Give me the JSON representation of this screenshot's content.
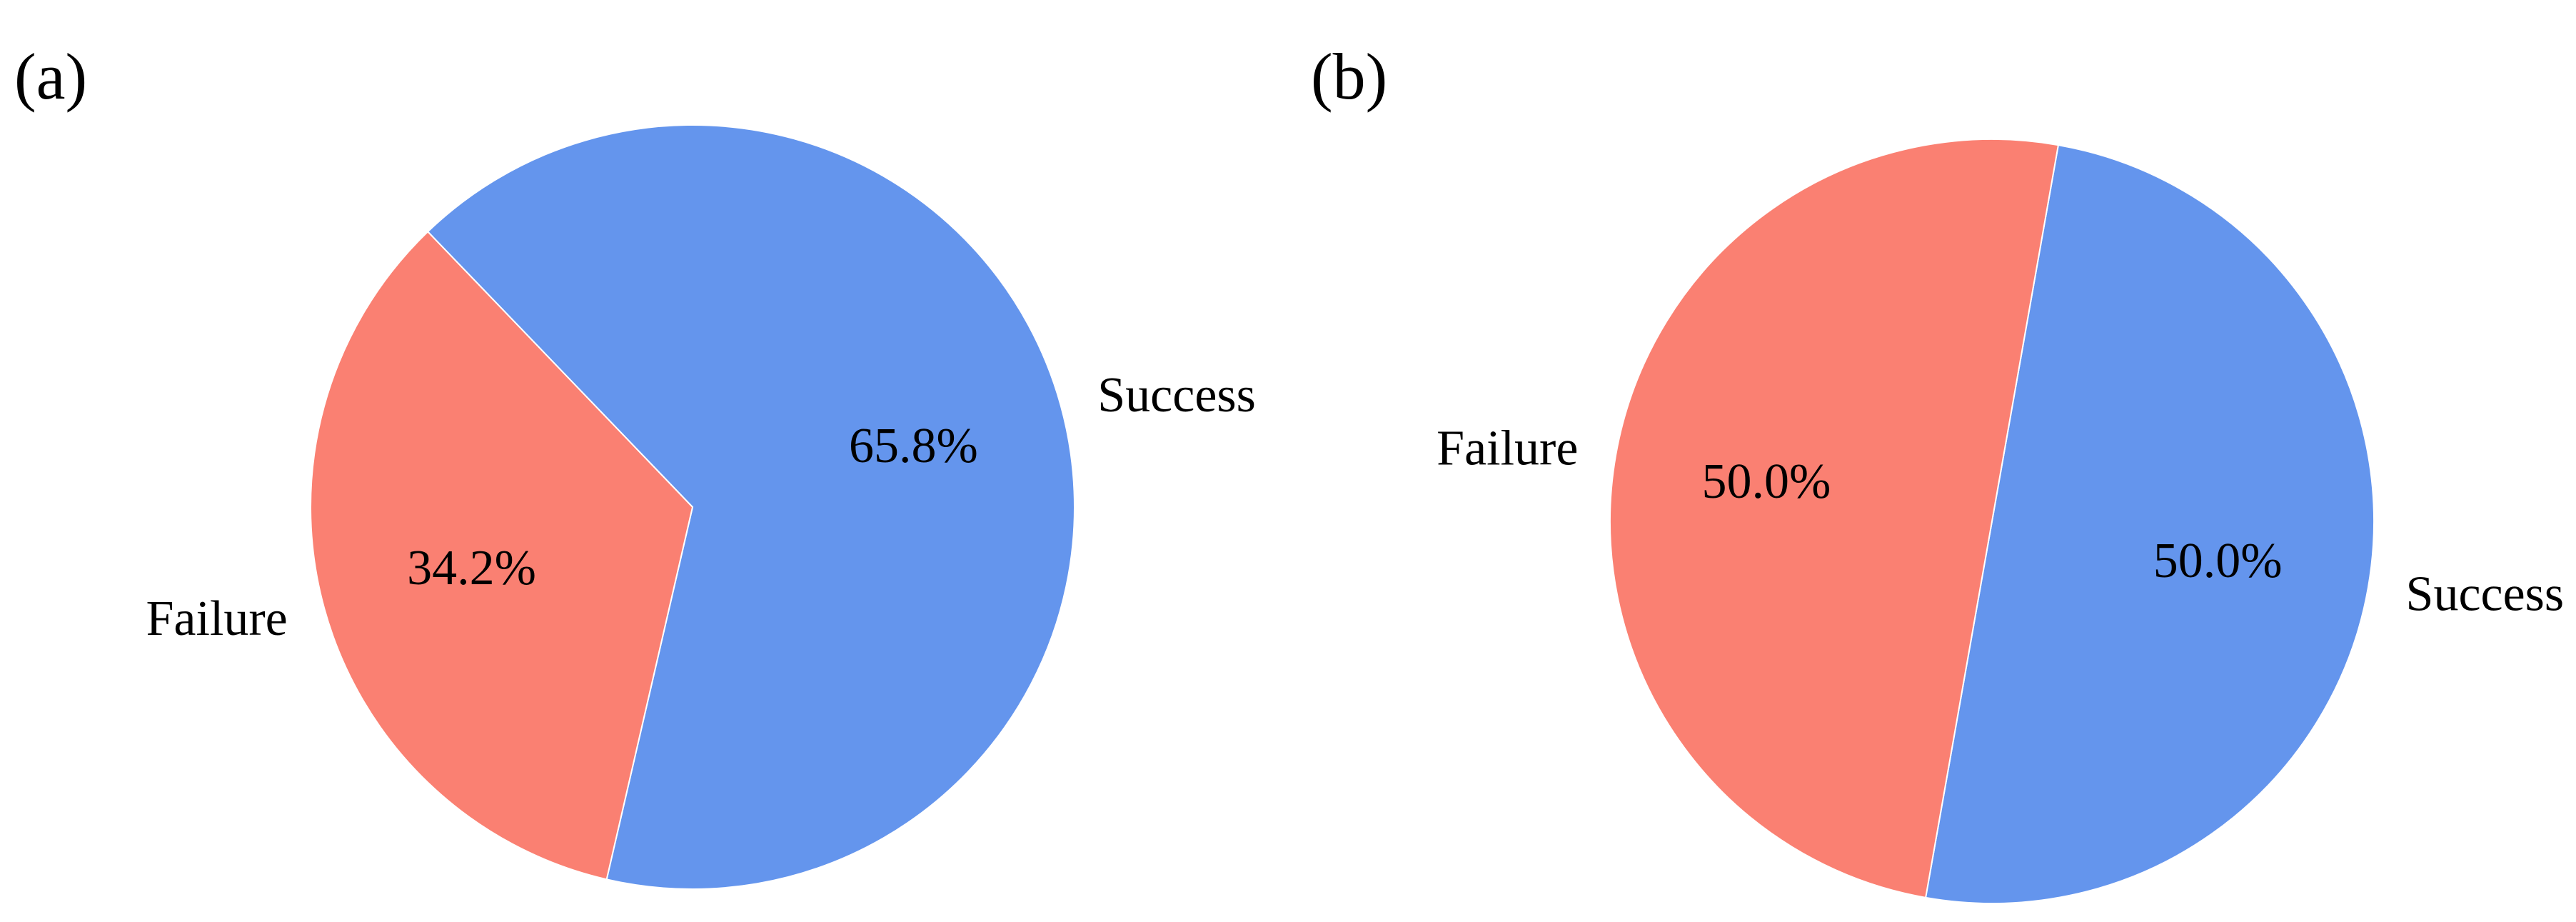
{
  "figure": {
    "panels": [
      "(a)",
      "(b)"
    ]
  },
  "chart_data": [
    {
      "type": "pie",
      "panel": "(a)",
      "categories": [
        "Success",
        "Failure"
      ],
      "values": [
        65.8,
        34.2
      ],
      "value_labels": [
        "65.8%",
        "34.2%"
      ],
      "colors": [
        "#6495ED",
        "#FA8072"
      ],
      "start_angle_deg": 257,
      "direction": "counterclockwise",
      "title": ""
    },
    {
      "type": "pie",
      "panel": "(b)",
      "categories": [
        "Success",
        "Failure"
      ],
      "values": [
        50.0,
        50.0
      ],
      "value_labels": [
        "50.0%",
        "50.0%"
      ],
      "colors": [
        "#6495ED",
        "#FA8072"
      ],
      "start_angle_deg": 260,
      "direction": "counterclockwise",
      "title": ""
    }
  ]
}
